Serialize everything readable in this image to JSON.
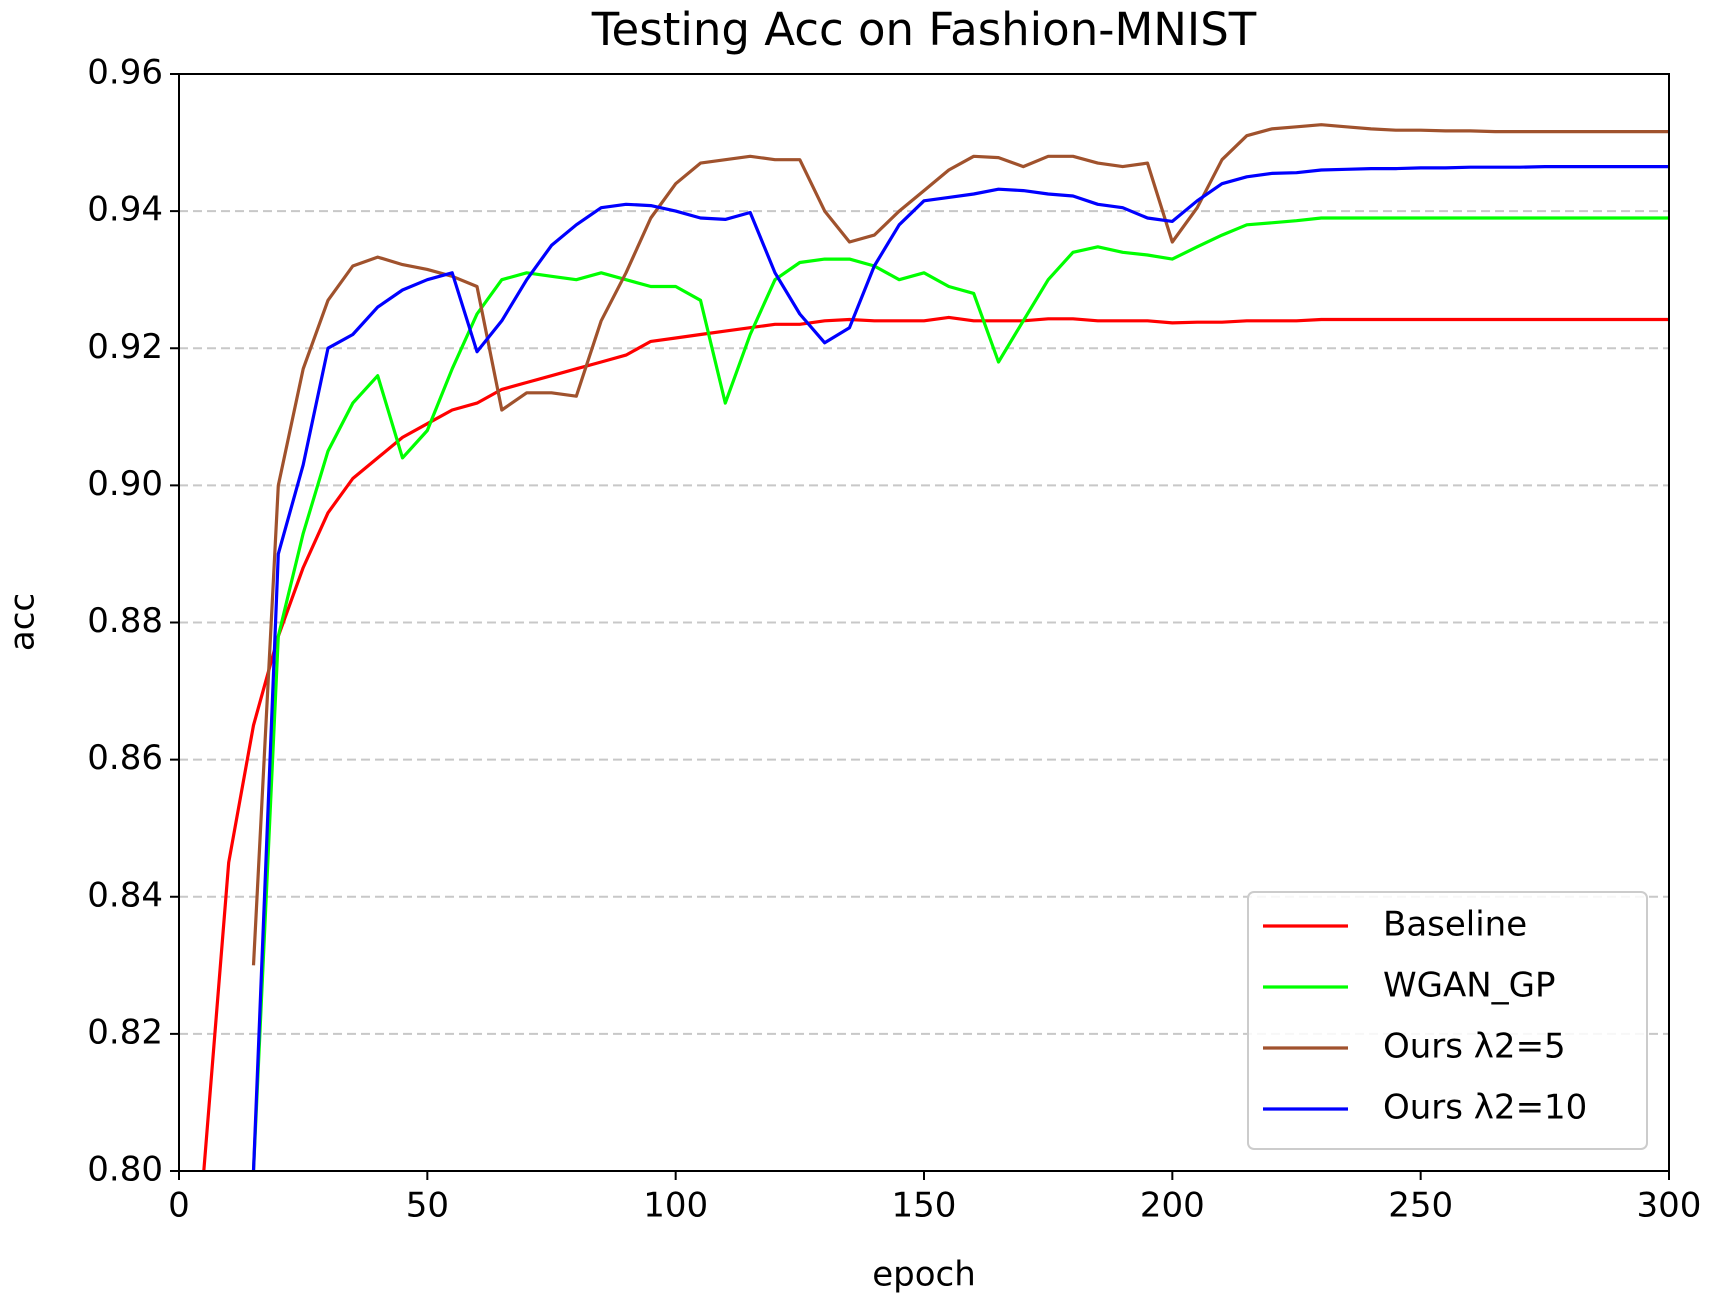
{
  "chart_data": {
    "type": "line",
    "title": "Testing Acc on Fashion-MNIST",
    "x_label": "epoch",
    "y_label": "acc",
    "x": [
      5,
      10,
      15,
      20,
      25,
      30,
      35,
      40,
      45,
      50,
      55,
      60,
      65,
      70,
      75,
      80,
      85,
      90,
      95,
      100,
      105,
      110,
      115,
      120,
      125,
      130,
      135,
      140,
      145,
      150,
      155,
      160,
      165,
      170,
      175,
      180,
      185,
      190,
      195,
      200,
      205,
      210,
      215,
      220,
      225,
      230,
      235,
      240,
      245,
      250,
      255,
      260,
      265,
      270,
      275,
      280,
      285,
      290,
      295,
      300
    ],
    "series": [
      {
        "name": "Baseline",
        "color": "#ff0000",
        "values": [
          0.8,
          0.845,
          0.865,
          0.878,
          0.888,
          0.896,
          0.901,
          0.904,
          0.907,
          0.909,
          0.911,
          0.912,
          0.914,
          0.915,
          0.916,
          0.917,
          0.918,
          0.919,
          0.921,
          0.9215,
          0.922,
          0.9225,
          0.923,
          0.9235,
          0.9235,
          0.924,
          0.9242,
          0.924,
          0.924,
          0.924,
          0.9245,
          0.924,
          0.924,
          0.924,
          0.9243,
          0.9243,
          0.924,
          0.924,
          0.924,
          0.9237,
          0.9238,
          0.9238,
          0.924,
          0.924,
          0.924,
          0.9242,
          0.9242,
          0.9242,
          0.9242,
          0.9242,
          0.9242,
          0.9242,
          0.9242,
          0.9242,
          0.9242,
          0.9242,
          0.9242,
          0.9242,
          0.9242,
          0.9242
        ]
      },
      {
        "name": "WGAN_GP",
        "color": "#00ff00",
        "values": [
          null,
          null,
          0.8,
          0.878,
          0.893,
          0.905,
          0.912,
          0.916,
          0.904,
          0.908,
          0.917,
          0.925,
          0.93,
          0.931,
          0.9305,
          0.93,
          0.931,
          0.93,
          0.929,
          0.929,
          0.927,
          0.912,
          0.922,
          0.93,
          0.9325,
          0.933,
          0.933,
          0.932,
          0.93,
          0.931,
          0.929,
          0.928,
          0.918,
          0.924,
          0.93,
          0.934,
          0.9348,
          0.934,
          0.9336,
          0.933,
          0.9348,
          0.9365,
          0.938,
          0.9383,
          0.9386,
          0.939,
          0.939,
          0.939,
          0.939,
          0.939,
          0.939,
          0.939,
          0.939,
          0.939,
          0.939,
          0.939,
          0.939,
          0.939,
          0.939,
          0.939
        ]
      },
      {
        "name": "Ours λ2=5",
        "color": "#a0522d",
        "values": [
          null,
          null,
          0.83,
          0.9,
          0.917,
          0.927,
          0.932,
          0.9333,
          0.9322,
          0.9315,
          0.9305,
          0.929,
          0.911,
          0.9135,
          0.9135,
          0.913,
          0.924,
          0.931,
          0.939,
          0.944,
          0.947,
          0.9475,
          0.948,
          0.9475,
          0.9475,
          0.94,
          0.9355,
          0.9365,
          0.94,
          0.943,
          0.946,
          0.948,
          0.9478,
          0.9465,
          0.948,
          0.948,
          0.947,
          0.9465,
          0.947,
          0.9355,
          0.9405,
          0.9475,
          0.951,
          0.952,
          0.9523,
          0.9526,
          0.9523,
          0.952,
          0.9518,
          0.9518,
          0.9517,
          0.9517,
          0.9516,
          0.9516,
          0.9516,
          0.9516,
          0.9516,
          0.9516,
          0.9516,
          0.9516
        ]
      },
      {
        "name": "Ours λ2=10",
        "color": "#0000ff",
        "values": [
          null,
          null,
          0.8,
          0.89,
          0.903,
          0.92,
          0.922,
          0.926,
          0.9285,
          0.93,
          0.931,
          0.9195,
          0.924,
          0.93,
          0.935,
          0.938,
          0.9405,
          0.941,
          0.9408,
          0.94,
          0.939,
          0.9388,
          0.9398,
          0.931,
          0.925,
          0.9208,
          0.923,
          0.932,
          0.938,
          0.9415,
          0.942,
          0.9425,
          0.9432,
          0.943,
          0.9425,
          0.9422,
          0.941,
          0.9405,
          0.939,
          0.9385,
          0.9415,
          0.944,
          0.945,
          0.9455,
          0.9456,
          0.946,
          0.9461,
          0.9462,
          0.9462,
          0.9463,
          0.9463,
          0.9464,
          0.9464,
          0.9464,
          0.9465,
          0.9465,
          0.9465,
          0.9465,
          0.9465,
          0.9465
        ]
      }
    ],
    "xlim": [
      0,
      300
    ],
    "xticks": [
      0,
      50,
      100,
      150,
      200,
      250,
      300
    ],
    "ylim": [
      0.8,
      0.96
    ],
    "yticks": [
      {
        "value": 0.8,
        "label": "0.80"
      },
      0.82,
      0.84,
      0.86,
      0.88,
      {
        "value": 0.9,
        "label": "0.90"
      },
      0.92,
      0.94,
      0.96
    ],
    "grid": true,
    "legend": "lower right"
  }
}
